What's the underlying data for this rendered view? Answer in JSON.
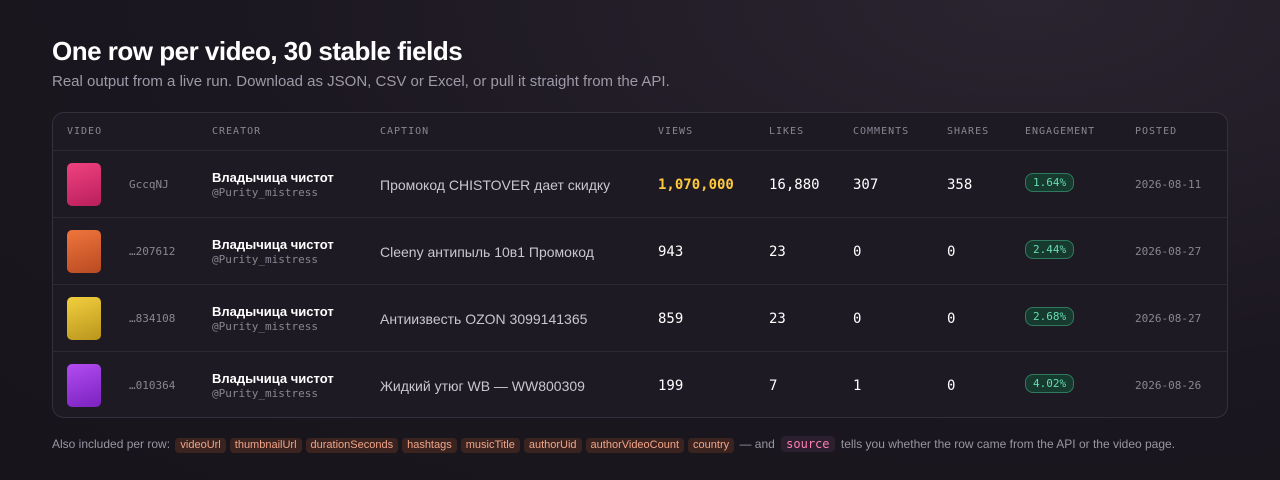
{
  "header": {
    "title": "One row per video, 30 stable fields",
    "subtitle": "Real output from a live run. Download as JSON, CSV or Excel, or pull it straight from the API."
  },
  "table": {
    "columns": [
      "VIDEO",
      "CREATOR",
      "CAPTION",
      "VIEWS",
      "LIKES",
      "COMMENTS",
      "SHARES",
      "ENGAGEMENT",
      "POSTED"
    ],
    "rows": [
      {
        "video_id": "GccqNJ",
        "creator": "Владычица чистот",
        "handle": "@Purity_mistress",
        "caption": "Промокод CHISTOVER дает скидку",
        "views": "1,070,000",
        "likes": "16,880",
        "comments": "307",
        "shares": "358",
        "engagement": "1.64%",
        "posted": "2026-08-11"
      },
      {
        "video_id": "…207612",
        "creator": "Владычица чистот",
        "handle": "@Purity_mistress",
        "caption": "Cleeny антипыль 10в1 Промокод",
        "views": "943",
        "likes": "23",
        "comments": "0",
        "shares": "0",
        "engagement": "2.44%",
        "posted": "2026-08-27"
      },
      {
        "video_id": "…834108",
        "creator": "Владычица чистот",
        "handle": "@Purity_mistress",
        "caption": "Антиизвесть OZON 3099141365",
        "views": "859",
        "likes": "23",
        "comments": "0",
        "shares": "0",
        "engagement": "2.68%",
        "posted": "2026-08-27"
      },
      {
        "video_id": "…010364",
        "creator": "Владычица чистот",
        "handle": "@Purity_mistress",
        "caption": "Жидкий утюг WB — WW800309",
        "views": "199",
        "likes": "7",
        "comments": "1",
        "shares": "0",
        "engagement": "4.02%",
        "posted": "2026-08-26"
      }
    ]
  },
  "footer": {
    "lead": "Also included per row:",
    "fields": [
      "videoUrl",
      "thumbnailUrl",
      "durationSeconds",
      "hashtags",
      "musicTitle",
      "authorUid",
      "authorVideoCount",
      "country"
    ],
    "connector": "— and",
    "source_field": "source",
    "tail": "tells you whether the row came from the API or the video page."
  }
}
